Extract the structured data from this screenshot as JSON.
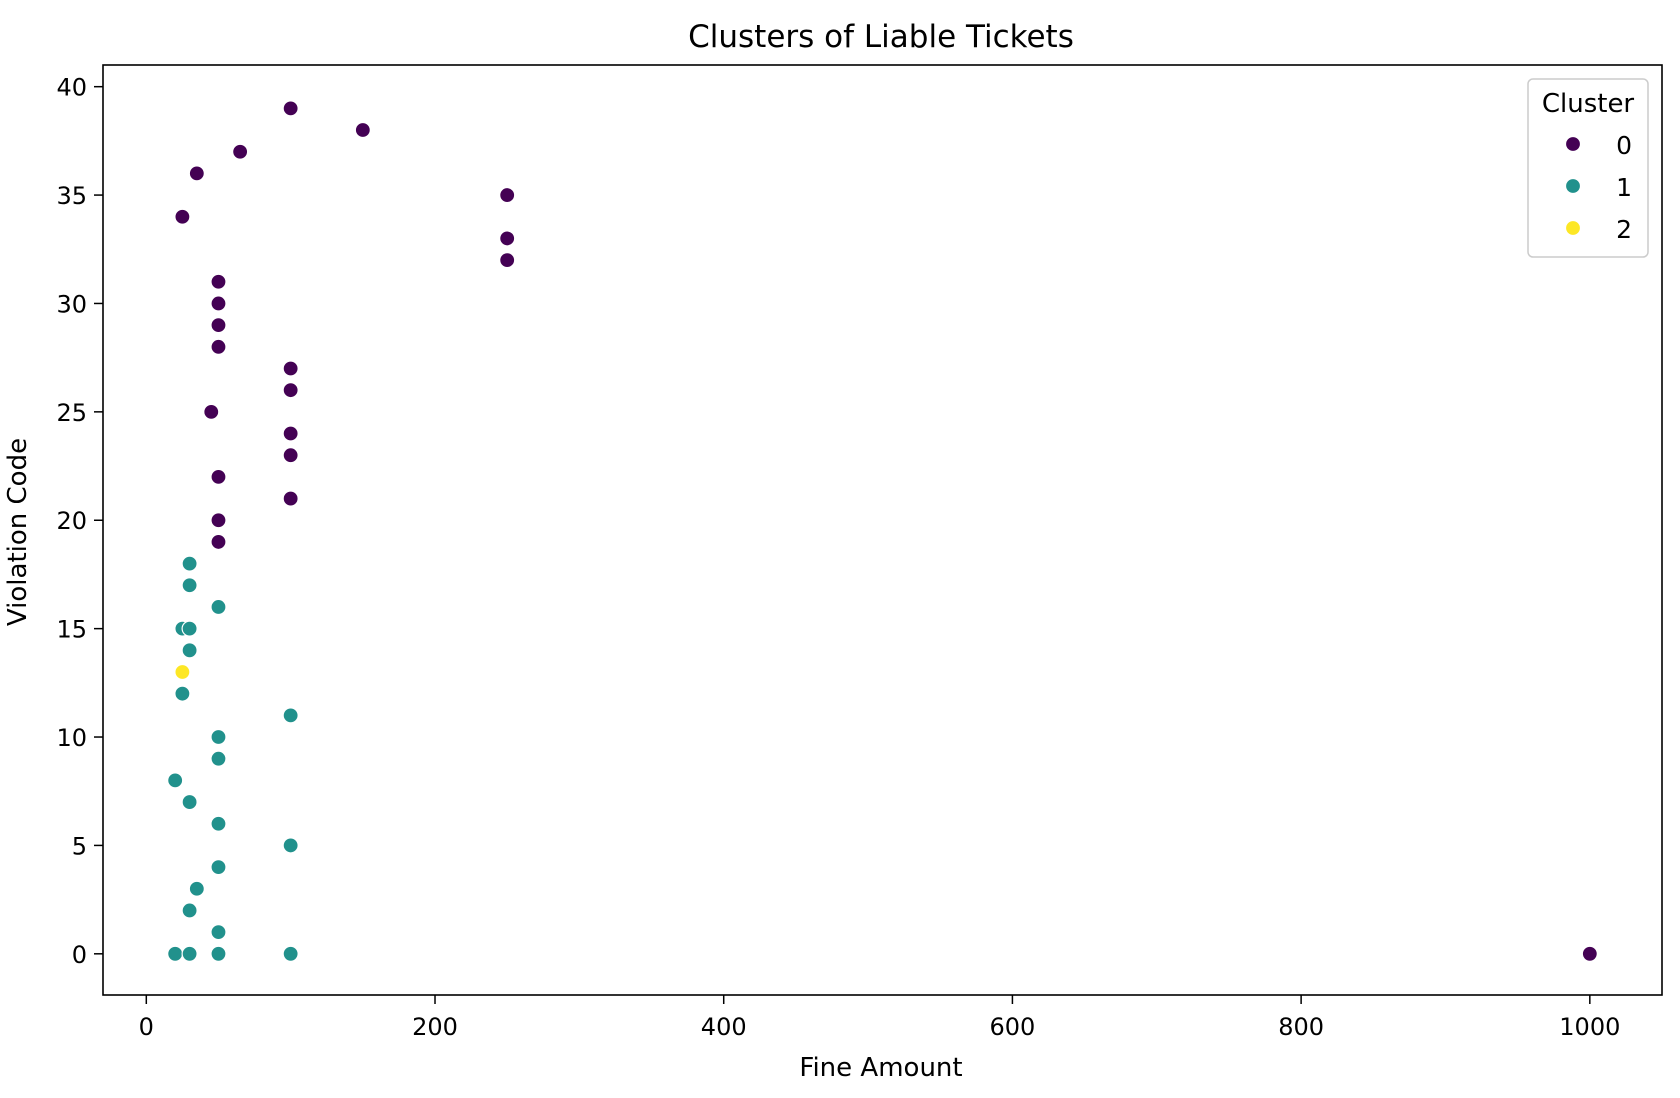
{
  "chart_data": {
    "type": "scatter",
    "title": "Clusters of Liable Tickets",
    "xlabel": "Fine Amount",
    "ylabel": "Violation Code",
    "xlim": [
      -30,
      1050
    ],
    "ylim": [
      -1.9,
      41
    ],
    "xticks": [
      0,
      200,
      400,
      600,
      800,
      1000
    ],
    "yticks": [
      0,
      5,
      10,
      15,
      20,
      25,
      30,
      35,
      40
    ],
    "grid": false,
    "legend": {
      "title": "Cluster",
      "placement": "top-right"
    },
    "series": [
      {
        "name": "0",
        "color": "#440154",
        "points": [
          [
            100,
            39
          ],
          [
            150,
            38
          ],
          [
            65,
            37
          ],
          [
            35,
            36
          ],
          [
            25,
            34
          ],
          [
            250,
            35
          ],
          [
            250,
            33
          ],
          [
            250,
            32
          ],
          [
            50,
            31
          ],
          [
            50,
            30
          ],
          [
            50,
            29
          ],
          [
            50,
            28
          ],
          [
            100,
            27
          ],
          [
            100,
            26
          ],
          [
            45,
            25
          ],
          [
            100,
            24
          ],
          [
            100,
            23
          ],
          [
            50,
            22
          ],
          [
            100,
            21
          ],
          [
            50,
            20
          ],
          [
            50,
            19
          ],
          [
            1000,
            0
          ]
        ]
      },
      {
        "name": "1",
        "color": "#21918c",
        "points": [
          [
            30,
            18
          ],
          [
            30,
            17
          ],
          [
            50,
            16
          ],
          [
            25,
            15
          ],
          [
            30,
            15
          ],
          [
            30,
            14
          ],
          [
            25,
            12
          ],
          [
            100,
            11
          ],
          [
            50,
            10
          ],
          [
            50,
            9
          ],
          [
            20,
            8
          ],
          [
            30,
            7
          ],
          [
            50,
            6
          ],
          [
            100,
            5
          ],
          [
            50,
            4
          ],
          [
            35,
            3
          ],
          [
            30,
            2
          ],
          [
            50,
            1
          ],
          [
            20,
            0
          ],
          [
            30,
            0
          ],
          [
            50,
            0
          ],
          [
            100,
            0
          ]
        ]
      },
      {
        "name": "2",
        "color": "#fde725",
        "points": [
          [
            25,
            13
          ]
        ]
      }
    ]
  }
}
